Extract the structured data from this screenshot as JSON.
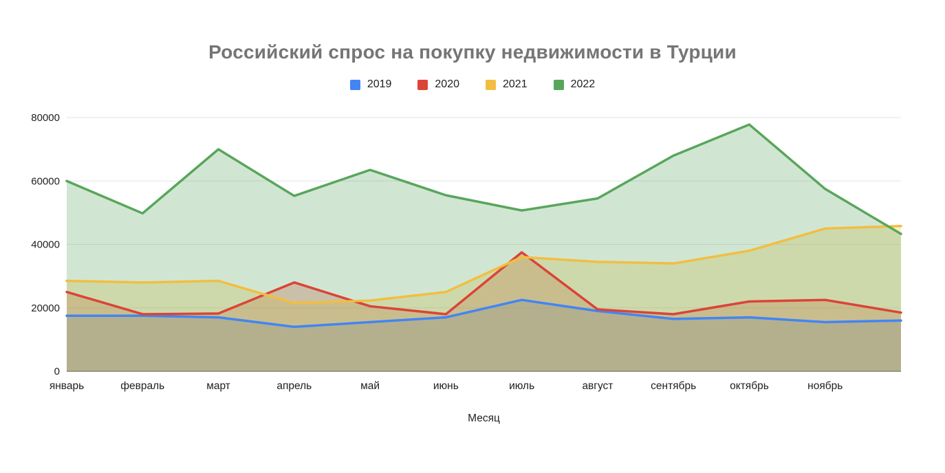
{
  "chart_data": {
    "type": "area",
    "title": "Российский спрос на покупку недвижимости в Турции",
    "xlabel": "Месяц",
    "ylabel": "",
    "categories": [
      "январь",
      "февраль",
      "март",
      "апрель",
      "май",
      "июнь",
      "июль",
      "август",
      "сентябрь",
      "октябрь",
      "ноябрь",
      ""
    ],
    "series": [
      {
        "name": "2019",
        "color": "#4285F4",
        "values": [
          17500,
          17500,
          17000,
          14000,
          15500,
          17000,
          22500,
          19000,
          16500,
          17000,
          15500,
          16000
        ]
      },
      {
        "name": "2020",
        "color": "#DB4437",
        "values": [
          25000,
          18000,
          18200,
          28000,
          20500,
          18000,
          37500,
          19500,
          18000,
          22000,
          22500,
          18500
        ]
      },
      {
        "name": "2021",
        "color": "#F1BE42",
        "values": [
          28500,
          28000,
          28500,
          21500,
          22300,
          25000,
          36000,
          34500,
          34000,
          38000,
          45000,
          45800
        ]
      },
      {
        "name": "2022",
        "color": "#58A65C",
        "values": [
          60000,
          49800,
          70000,
          55300,
          63500,
          55500,
          50700,
          54500,
          68000,
          77800,
          57500,
          43300
        ]
      }
    ],
    "y_axis": {
      "min": 0,
      "max": 80000,
      "tick_step": 20000,
      "ticks": [
        0,
        20000,
        40000,
        60000,
        80000
      ]
    },
    "grid": true,
    "legend_position": "top",
    "fill_opacity": 0.28
  },
  "styles": {
    "title_color": "#757575",
    "text_color": "#202124",
    "gridline_color": "#E3E3E3",
    "baseline_color": "#7A7A7A",
    "background": "#FFFFFF"
  }
}
